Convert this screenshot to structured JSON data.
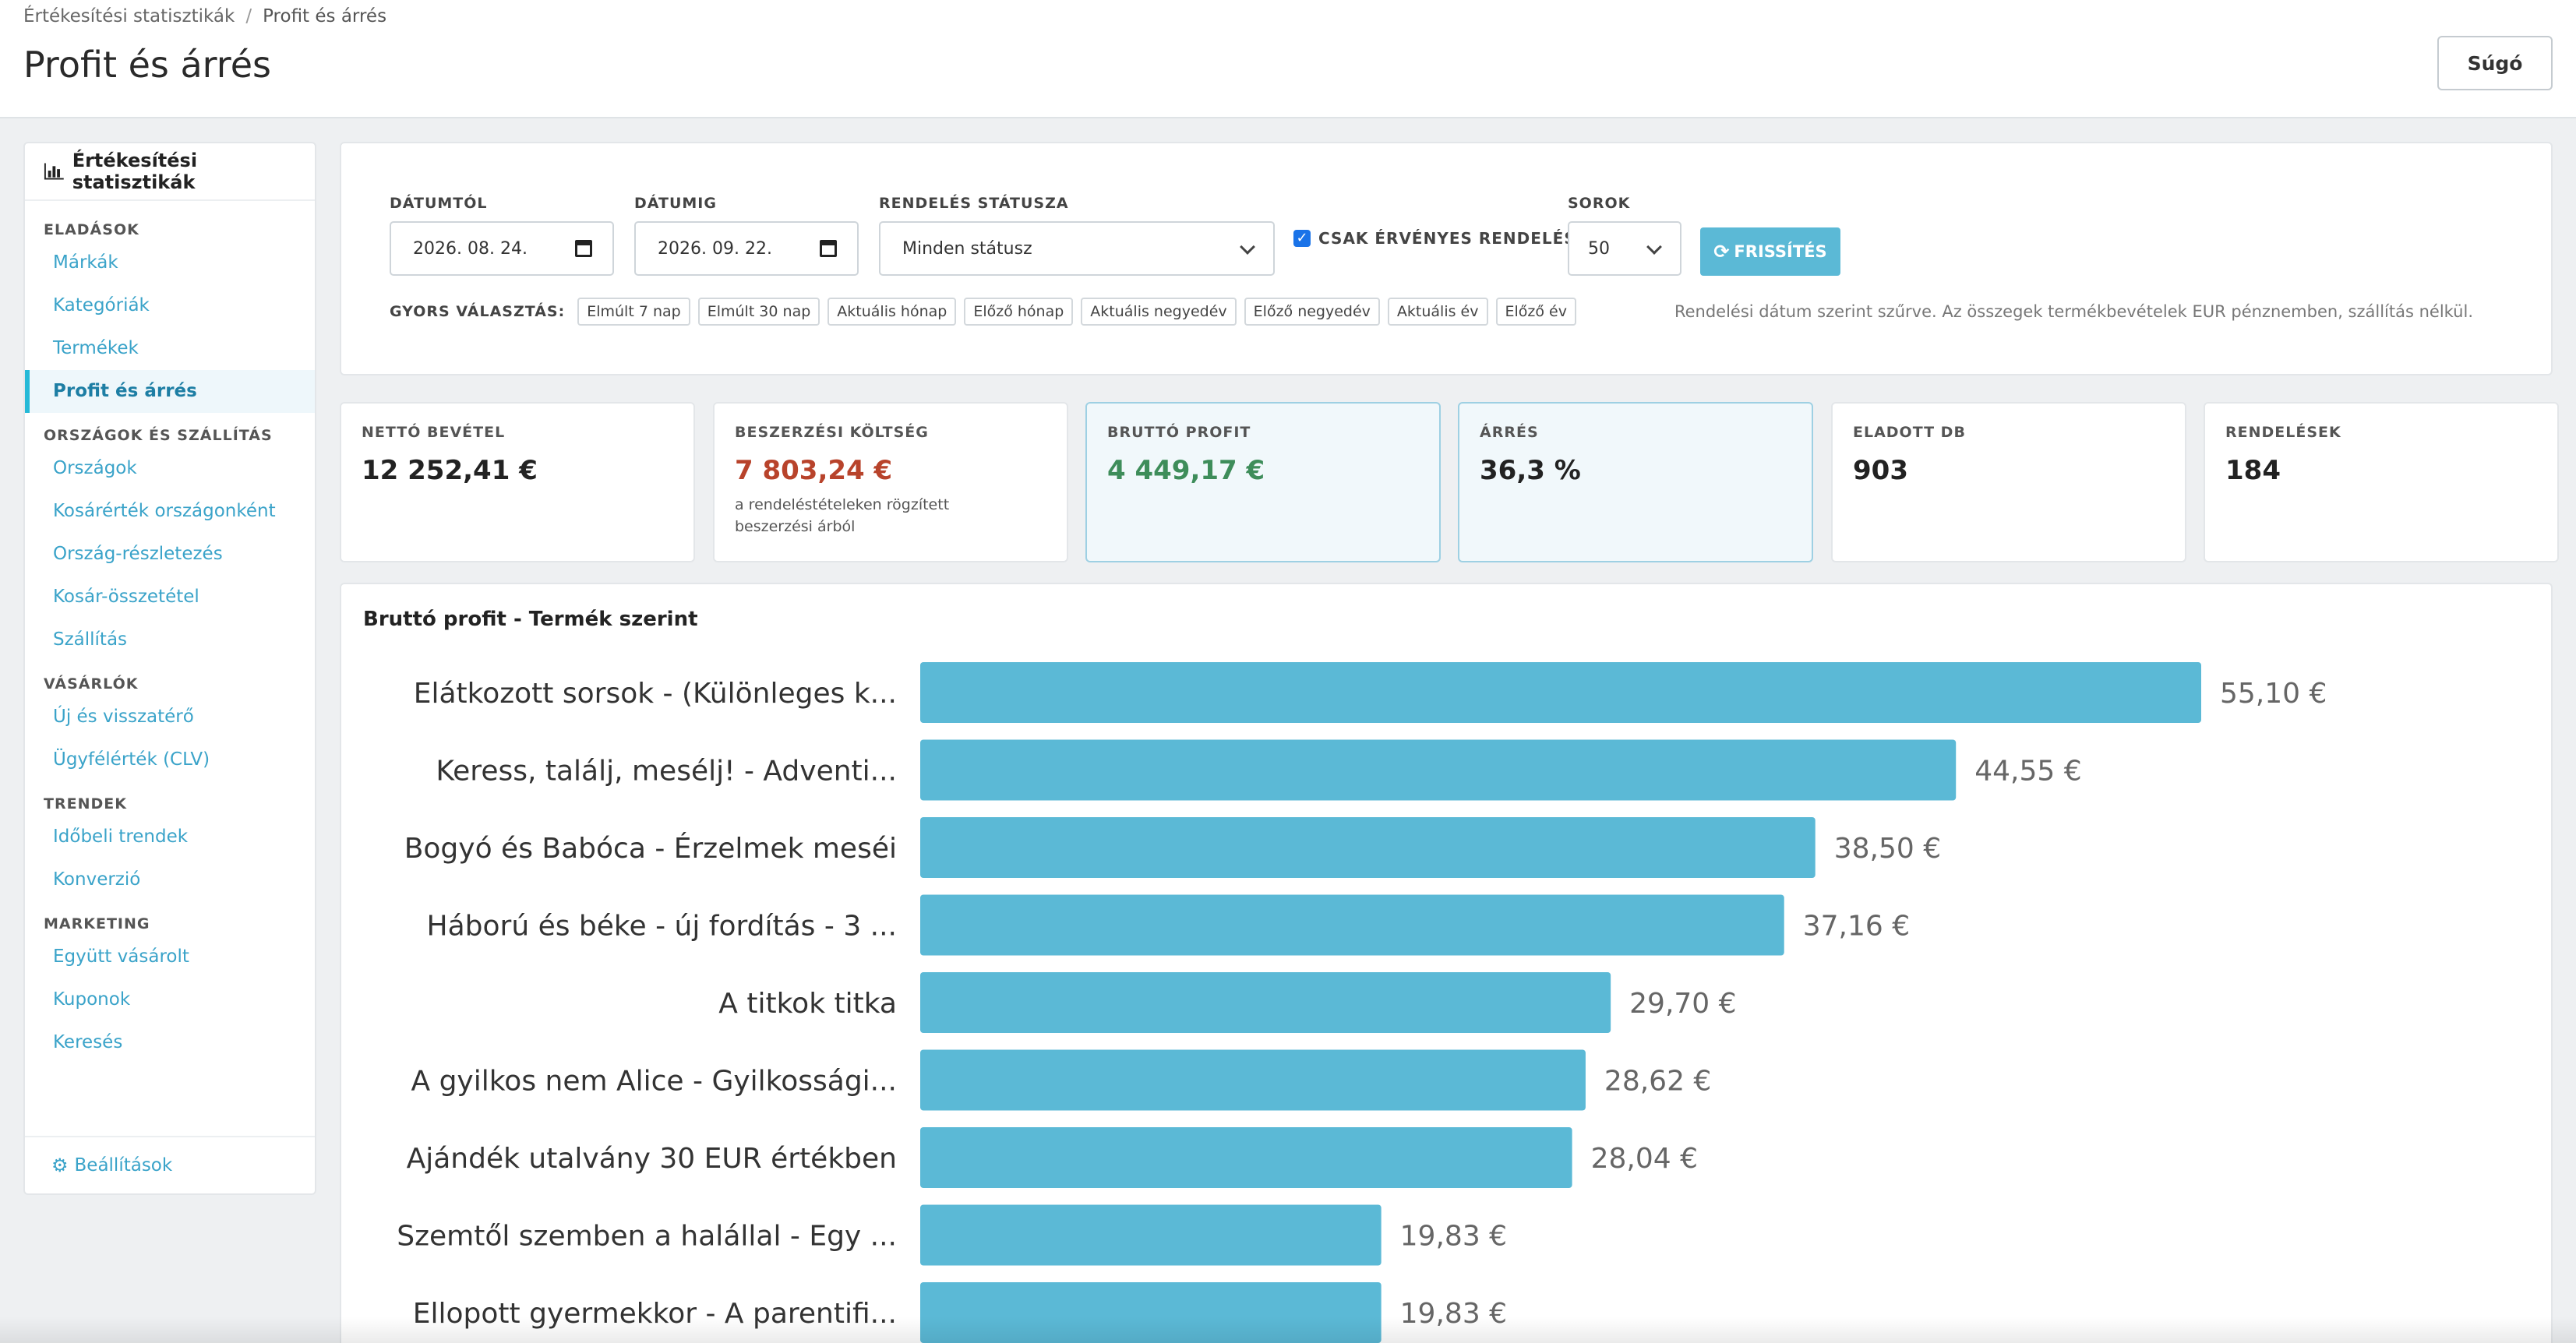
{
  "breadcrumb": {
    "parent": "Értékesítési statisztikák",
    "separator": "/",
    "current": "Profit és árrés"
  },
  "page_title": "Profit és árrés",
  "help_label": "Súgó",
  "sidebar": {
    "title": "Értékesítési statisztikák",
    "groups": [
      {
        "title": "ELADÁSOK",
        "items": [
          "Márkák",
          "Kategóriák",
          "Termékek",
          "Profit és árrés"
        ]
      },
      {
        "title": "ORSZÁGOK ÉS SZÁLLÍTÁS",
        "items": [
          "Országok",
          "Kosárérték országonként",
          "Ország-részletezés",
          "Kosár-összetétel",
          "Szállítás"
        ]
      },
      {
        "title": "VÁSÁRLÓK",
        "items": [
          "Új és visszatérő",
          "Ügyfélérték (CLV)"
        ]
      },
      {
        "title": "TRENDEK",
        "items": [
          "Időbeli trendek",
          "Konverzió"
        ]
      },
      {
        "title": "MARKETING",
        "items": [
          "Együtt vásárolt",
          "Kuponok",
          "Keresés"
        ]
      }
    ],
    "active_item": "Profit és árrés",
    "settings_label": "Beállítások"
  },
  "filters": {
    "date_from_label": "DÁTUMTÓL",
    "date_from_value": "2026. 08. 24.",
    "date_to_label": "DÁTUMIG",
    "date_to_value": "2026. 09. 22.",
    "status_label": "RENDELÉS STÁTUSZA",
    "status_value": "Minden státusz",
    "valid_only_label": "CSAK ÉRVÉNYES RENDELÉSEK",
    "valid_only_checked": true,
    "rows_label": "SOROK",
    "rows_value": "50",
    "refresh_label": "FRISSÍTÉS",
    "quick_label": "GYORS VÁLASZTÁS:",
    "quick_options": [
      "Elmúlt 7 nap",
      "Elmúlt 30 nap",
      "Aktuális hónap",
      "Előző hónap",
      "Aktuális negyedév",
      "Előző negyedév",
      "Aktuális év",
      "Előző év"
    ],
    "note": "Rendelési dátum szerint szűrve. Az összegek termékbevételek EUR pénznemben, szállítás nélkül."
  },
  "kpis": [
    {
      "label": "NETTÓ BEVÉTEL",
      "value": "12 252,41 €"
    },
    {
      "label": "BESZERZÉSI KÖLTSÉG",
      "value": "7 803,24 €",
      "sub": "a rendeléstételeken rögzített beszerzési árból"
    },
    {
      "label": "BRUTTÓ PROFIT",
      "value": "4 449,17 €"
    },
    {
      "label": "ÁRRÉS",
      "value": "36,3 %"
    },
    {
      "label": "ELADOTT DB",
      "value": "903"
    },
    {
      "label": "RENDELÉSEK",
      "value": "184"
    }
  ],
  "colors": {
    "accent": "#25b9d7",
    "bar": "#5bb9d6",
    "cost_red": "#b8432b",
    "profit_green": "#3e8d5a"
  },
  "chart_data": {
    "type": "bar",
    "orientation": "horizontal",
    "title": "Bruttó profit - Termék szerint",
    "categories": [
      "Elátkozott sorsok - (Különleges k...",
      "Keress, találj, mesélj! - Adventi...",
      "Bogyó és Babóca - Érzelmek meséi",
      "Háború és béke - új fordítás - 3 ...",
      "A titkok titka",
      "A gyilkos nem Alice - Gyilkossági...",
      "Ajándék utalvány 30 EUR értékben",
      "Szemtől szemben a halállal - Egy ...",
      "Ellopott gyermekkor - A parentifi..."
    ],
    "values": [
      55.1,
      44.55,
      38.5,
      37.16,
      29.7,
      28.62,
      28.04,
      19.83,
      19.83
    ],
    "value_labels": [
      "55,10 €",
      "44,55 €",
      "38,50 €",
      "37,16 €",
      "29,70 €",
      "28,62 €",
      "28,04 €",
      "19,83 €",
      "19,83 €"
    ],
    "unit": "€",
    "grid": false,
    "legend": "none"
  }
}
